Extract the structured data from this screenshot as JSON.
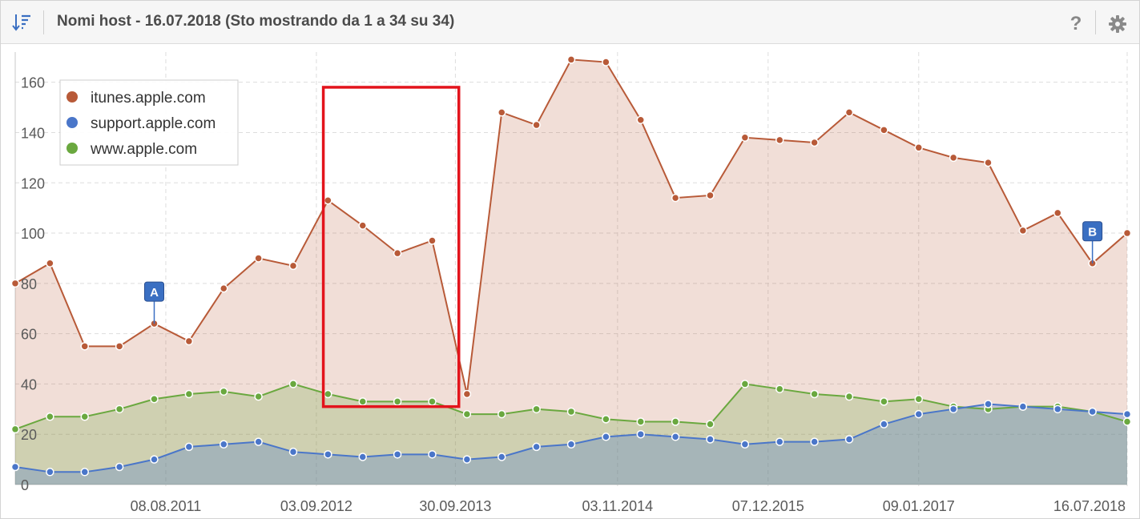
{
  "header": {
    "title": "Nomi host - 16.07.2018 (Sto mostrando da 1 a 34 su 34)",
    "sort_icon": "sort-descending-icon",
    "help_icon": "question-mark-icon",
    "settings_icon": "gear-icon"
  },
  "colors": {
    "itunes": "#b85a38",
    "support": "#4a76c9",
    "www": "#6aa83f",
    "highlight_box": "#e3141c",
    "marker": "#3a6fc2"
  },
  "chart_data": {
    "type": "area",
    "title": "",
    "xlabel": "",
    "ylabel": "",
    "ylim": [
      0,
      172
    ],
    "yticks": [
      "0",
      "20",
      "40",
      "60",
      "80",
      "100",
      "120",
      "140",
      "160"
    ],
    "xticks": [
      "08.08.2011",
      "03.09.2012",
      "30.09.2013",
      "03.11.2014",
      "07.12.2015",
      "09.01.2017",
      "16.07.2018"
    ],
    "legend_position": "top-left",
    "grid": true,
    "x": [
      "2010-07",
      "2010-10",
      "2011-01",
      "2011-04",
      "2011-07",
      "2011-10",
      "2012-01",
      "2012-04",
      "2012-07",
      "2012-10",
      "2013-01",
      "2013-04",
      "2013-07",
      "2013-10",
      "2014-01",
      "2014-04",
      "2014-07",
      "2014-10",
      "2015-01",
      "2015-04",
      "2015-07",
      "2015-10",
      "2016-01",
      "2016-04",
      "2016-07",
      "2016-10",
      "2017-01",
      "2017-04",
      "2017-07",
      "2017-10",
      "2018-01",
      "2018-04",
      "2018-07"
    ],
    "series": [
      {
        "name": "itunes.apple.com",
        "values": [
          80,
          88,
          55,
          55,
          64,
          57,
          78,
          90,
          87,
          113,
          103,
          92,
          97,
          36,
          148,
          143,
          169,
          168,
          145,
          114,
          115,
          138,
          137,
          136,
          148,
          141,
          134,
          130,
          128,
          101,
          108,
          88,
          100
        ]
      },
      {
        "name": "support.apple.com",
        "values": [
          7,
          5,
          5,
          7,
          10,
          15,
          16,
          17,
          13,
          12,
          11,
          12,
          12,
          10,
          11,
          15,
          16,
          19,
          20,
          19,
          18,
          16,
          17,
          17,
          18,
          24,
          28,
          30,
          32,
          31,
          30,
          29,
          28
        ]
      },
      {
        "name": "www.apple.com",
        "values": [
          22,
          27,
          27,
          30,
          34,
          36,
          37,
          35,
          40,
          36,
          33,
          33,
          33,
          28,
          28,
          30,
          29,
          26,
          25,
          25,
          24,
          40,
          38,
          36,
          35,
          33,
          34,
          31,
          30,
          31,
          31,
          29,
          25
        ]
      }
    ],
    "annotations": [
      {
        "label": "A",
        "x": "2011-07",
        "series": "itunes.apple.com"
      },
      {
        "label": "B",
        "x": "2018-04",
        "series": "itunes.apple.com"
      }
    ]
  }
}
